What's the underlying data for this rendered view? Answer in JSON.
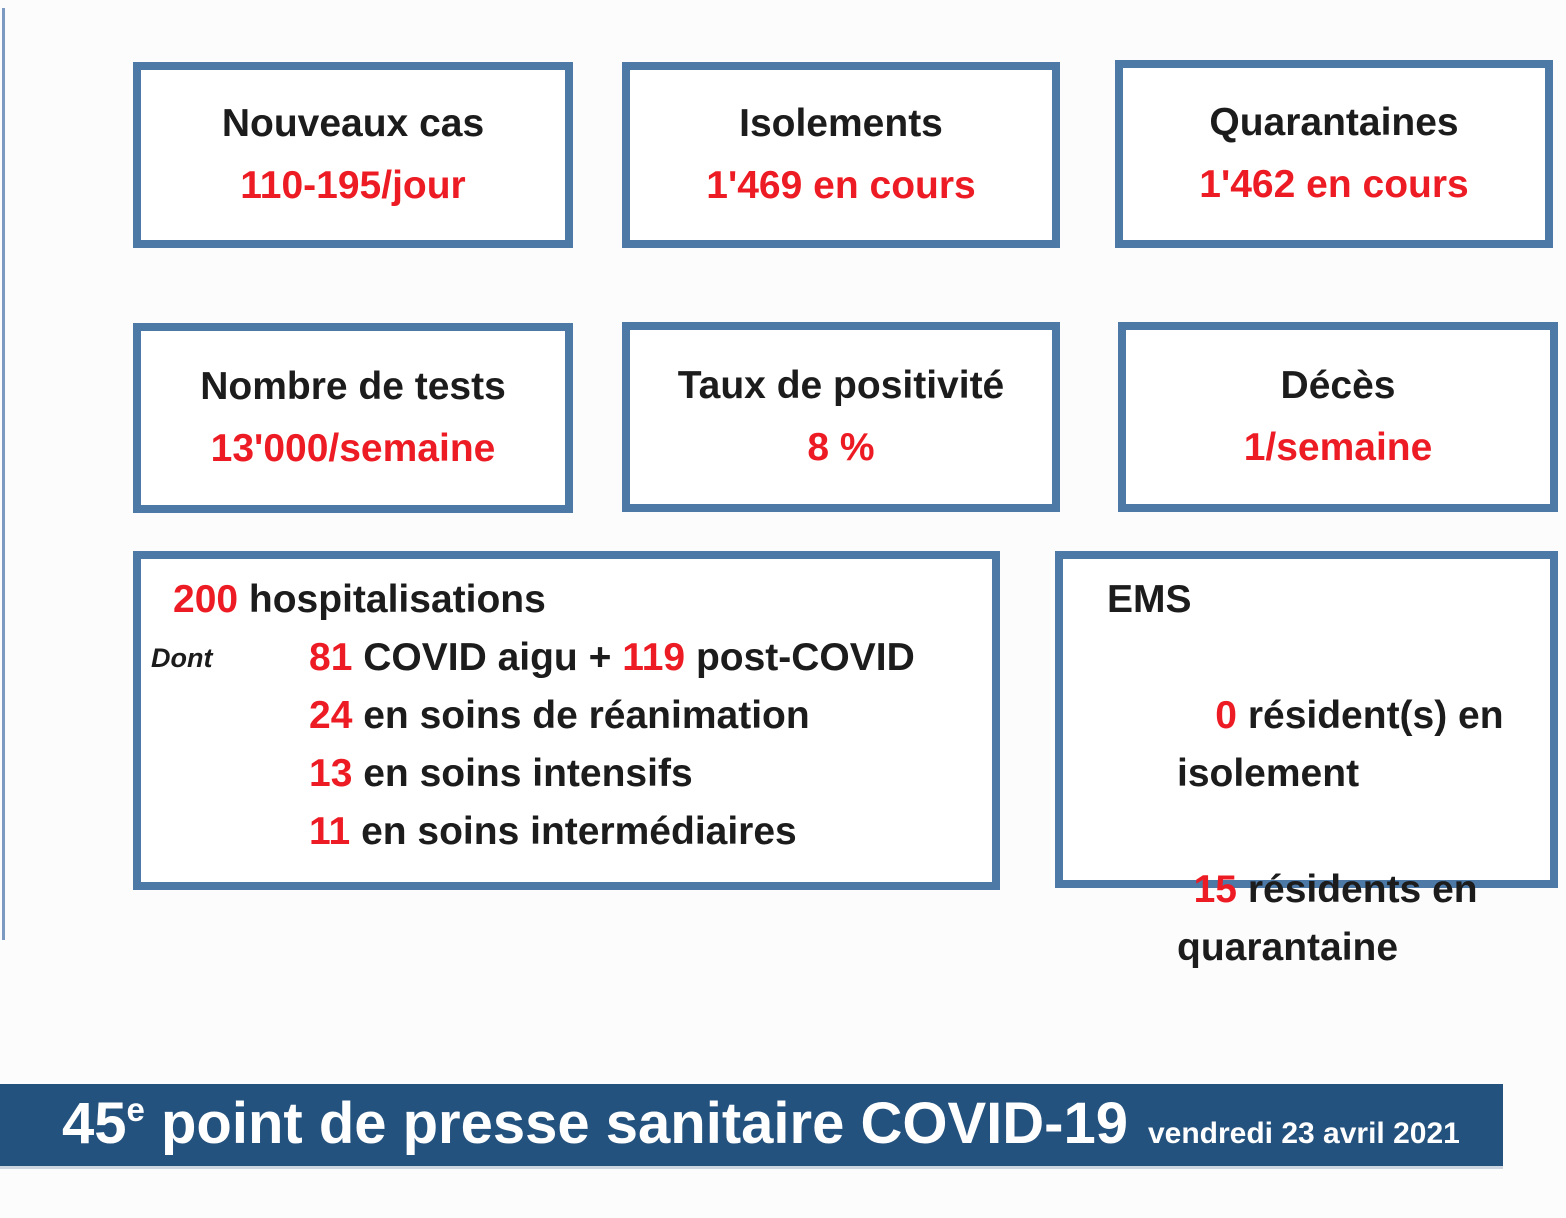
{
  "colors": {
    "box_border": "#4d79a7",
    "banner_bg": "#24527e",
    "accent_red": "#ed1c24",
    "text_black": "#1c1c1c",
    "left_rule": "#7b99c1"
  },
  "stat_boxes": [
    {
      "label": "Nouveaux cas",
      "value": "110-195/jour"
    },
    {
      "label": "Isolements",
      "value": "1'469 en cours"
    },
    {
      "label": "Quarantaines",
      "value": "1'462 en cours"
    },
    {
      "label": "Nombre de tests",
      "value": "13'000/semaine"
    },
    {
      "label": "Taux de positivité",
      "value": "8 %"
    },
    {
      "label": "Décès",
      "value": "1/semaine"
    }
  ],
  "hospitalisations": {
    "count": "200",
    "title": " hospitalisations",
    "dont": "Dont",
    "line1": {
      "num": "81",
      "text": " COVID aigu + ",
      "num2": "119",
      "text2": " post-COVID"
    },
    "line2": {
      "num": "24",
      "text": " en soins de réanimation"
    },
    "line3": {
      "num": "13",
      "text": " en soins intensifs"
    },
    "line4": {
      "num": "11",
      "text": " en soins intermédiaires"
    }
  },
  "ems": {
    "title": "EMS",
    "item1": {
      "num": "0",
      "text": " résident(s) en\nisolement"
    },
    "item2": {
      "num": "15",
      "text": " résidents en\nquarantaine"
    }
  },
  "banner": {
    "number": "45",
    "ordinal": "e",
    "title": " point de presse sanitaire COVID-19",
    "date": "vendredi 23 avril 2021"
  }
}
